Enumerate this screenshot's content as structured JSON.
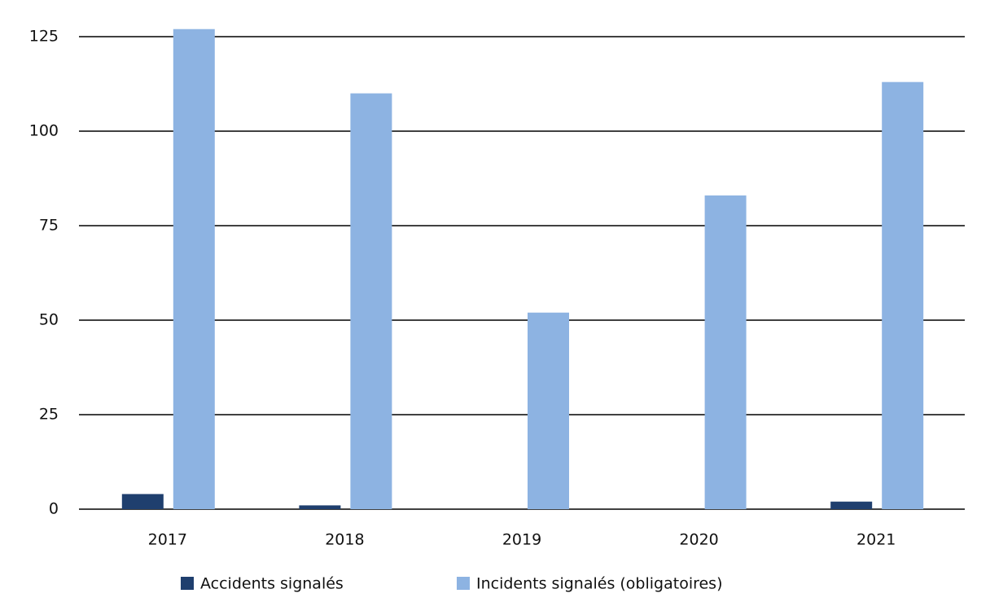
{
  "chart_data": {
    "type": "bar",
    "categories": [
      "2017",
      "2018",
      "2019",
      "2020",
      "2021"
    ],
    "series": [
      {
        "name": "Accidents signalés",
        "color": "#1f3f6e",
        "values": [
          4,
          1,
          0,
          0,
          2
        ]
      },
      {
        "name": "Incidents signalés (obligatoires)",
        "color": "#8db3e2",
        "values": [
          127,
          110,
          52,
          83,
          113
        ]
      }
    ],
    "ylim": [
      0,
      125
    ],
    "yticks": [
      0,
      25,
      50,
      75,
      100,
      125
    ],
    "grid": true,
    "legend": "bottom"
  }
}
